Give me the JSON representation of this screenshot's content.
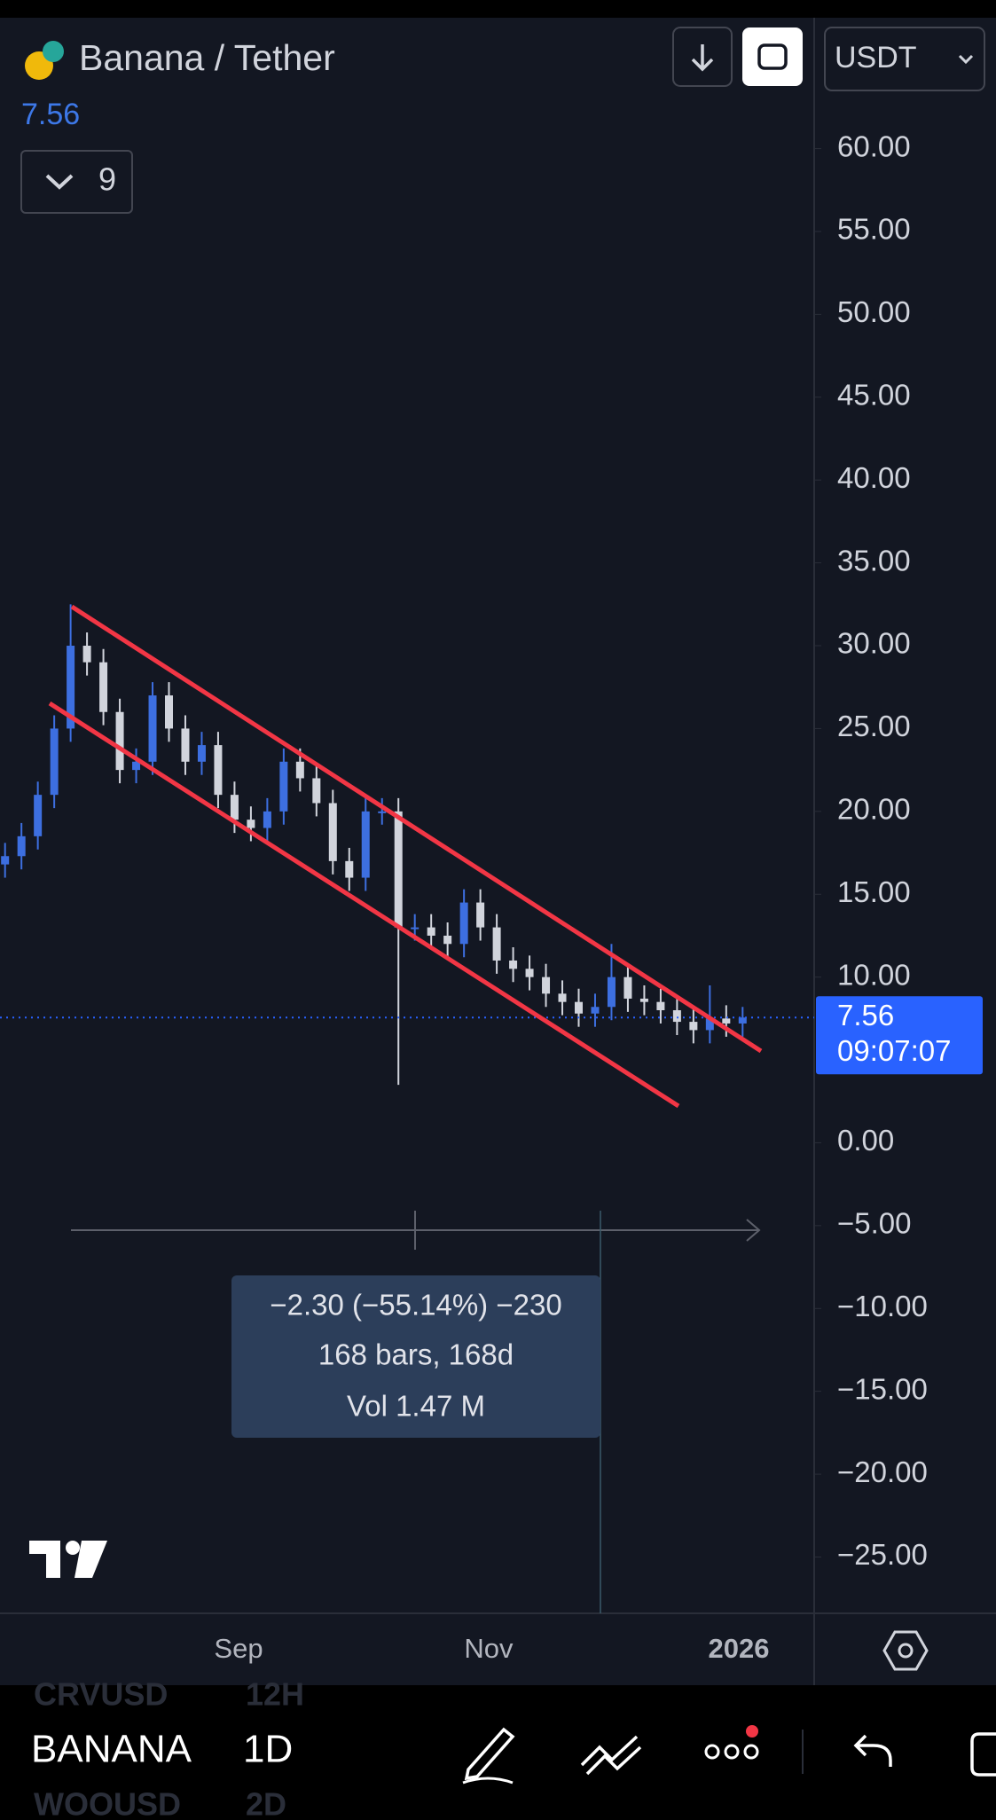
{
  "header": {
    "symbol": "Banana / Tether",
    "price": "7.56",
    "indicator_count": "9",
    "currency": "USDT"
  },
  "chart_data": {
    "type": "candlestick",
    "open": [
      16.8,
      17.3,
      18.5,
      21,
      25,
      30,
      29,
      26,
      22.5,
      23,
      27,
      25,
      23,
      24,
      21,
      19.5,
      19,
      20,
      23,
      22,
      20.5,
      17,
      16,
      20,
      20,
      13,
      13,
      12.5,
      12,
      14.5,
      13,
      11,
      10.5,
      10,
      9,
      8.5,
      7.8,
      8.2,
      10,
      8.7,
      8.5,
      8,
      7.3,
      6.8,
      7.5,
      7.2
    ],
    "high": [
      18.1,
      19.3,
      21.8,
      25.8,
      32.5,
      30.8,
      29.8,
      26.8,
      23.8,
      27.8,
      27.8,
      25.8,
      24.8,
      24.8,
      21.8,
      20.3,
      20.8,
      23.8,
      23.8,
      22.8,
      21.3,
      17.8,
      20.8,
      20.8,
      20.8,
      13.8,
      13.8,
      13.3,
      15.3,
      15.3,
      13.8,
      11.8,
      11.3,
      10.8,
      9.8,
      9.3,
      9,
      12,
      10.8,
      9.5,
      9.3,
      8.8,
      8.1,
      9.5,
      8.3,
      8.2
    ],
    "low": [
      16,
      16.5,
      17.7,
      20.2,
      24.2,
      28.2,
      25.2,
      21.7,
      21.7,
      22.2,
      24.2,
      22.2,
      22.2,
      20.2,
      18.7,
      18.2,
      18.2,
      19.2,
      21.2,
      19.7,
      16.2,
      15.2,
      15.2,
      19.2,
      3.5,
      12.2,
      11.7,
      11.2,
      11.2,
      12.2,
      10.2,
      9.7,
      9.2,
      8.2,
      7.7,
      7,
      7,
      7.4,
      7.9,
      7.7,
      7.2,
      6.5,
      6,
      6,
      6.4,
      6.4
    ],
    "close": [
      17.3,
      18.5,
      21,
      25,
      30,
      29,
      26,
      22.5,
      23,
      27,
      25,
      23,
      24,
      21,
      19.5,
      19,
      20,
      23,
      22,
      20.5,
      17,
      16,
      20,
      20,
      13,
      13,
      12.5,
      12,
      14.5,
      13,
      11,
      10.5,
      10,
      9,
      8.5,
      7.8,
      8.2,
      10,
      8.7,
      8.5,
      8,
      7.3,
      6.8,
      7.5,
      7.2,
      7.56
    ],
    "up_color": "#3d6fe0",
    "down_color": "#d1d4dc",
    "ylim": [
      -28.4,
      67.9
    ],
    "yticks": [
      {
        "value": 60,
        "label": "60.00"
      },
      {
        "value": 55,
        "label": "55.00"
      },
      {
        "value": 50,
        "label": "50.00"
      },
      {
        "value": 45,
        "label": "45.00"
      },
      {
        "value": 40,
        "label": "40.00"
      },
      {
        "value": 35,
        "label": "35.00"
      },
      {
        "value": 30,
        "label": "30.00"
      },
      {
        "value": 25,
        "label": "25.00"
      },
      {
        "value": 20,
        "label": "20.00"
      },
      {
        "value": 15,
        "label": "15.00"
      },
      {
        "value": 10,
        "label": "10.00"
      },
      {
        "value": 0,
        "label": "0.00"
      },
      {
        "value": -5,
        "label": "−5.00"
      },
      {
        "value": -10,
        "label": "−10.00"
      },
      {
        "value": -15,
        "label": "−15.00"
      },
      {
        "value": -20,
        "label": "−20.00"
      },
      {
        "value": -25,
        "label": "−25.00"
      }
    ],
    "last_price": 7.56,
    "countdown": "09:07:07",
    "x_labels": [
      "Sep",
      "Nov",
      "2026"
    ]
  },
  "measure": {
    "change": "−2.30 (−55.14%) −230",
    "bars": "168 bars, 168d",
    "volume": "Vol 1.47 M"
  },
  "toolbar": {
    "prev_symbol": "CRVUSD",
    "prev_interval": "12H",
    "symbol": "BANANA",
    "interval": "1D",
    "next_symbol": "WOOUSD",
    "next_interval": "2D"
  }
}
